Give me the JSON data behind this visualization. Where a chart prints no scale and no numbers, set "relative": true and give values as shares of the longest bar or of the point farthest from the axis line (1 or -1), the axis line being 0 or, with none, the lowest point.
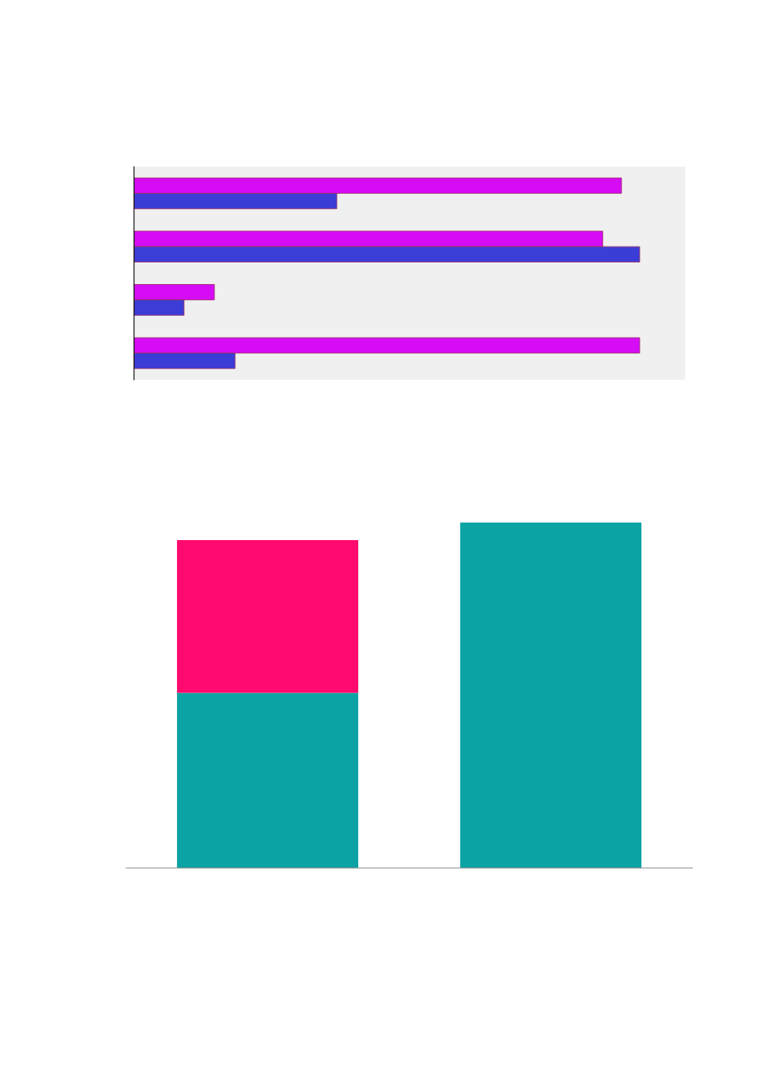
{
  "chart_data": [
    {
      "type": "bar",
      "orientation": "horizontal",
      "relative": true,
      "categories": [
        null,
        null,
        null,
        null
      ],
      "series": [
        {
          "color": "#d60cf5",
          "values": [
            0.964,
            0.927,
            0.159,
            1.0
          ]
        },
        {
          "color": "#3c3cd6",
          "values": [
            0.401,
            1.0,
            0.099,
            0.2
          ]
        }
      ]
    },
    {
      "type": "bar",
      "stacked": true,
      "relative": true,
      "categories": [
        null,
        null
      ],
      "series": [
        {
          "color": "#0ba3a3",
          "values": [
            0.507,
            1.0
          ]
        },
        {
          "color": "#ff0a6e",
          "values": [
            0.442,
            null
          ]
        }
      ]
    }
  ]
}
